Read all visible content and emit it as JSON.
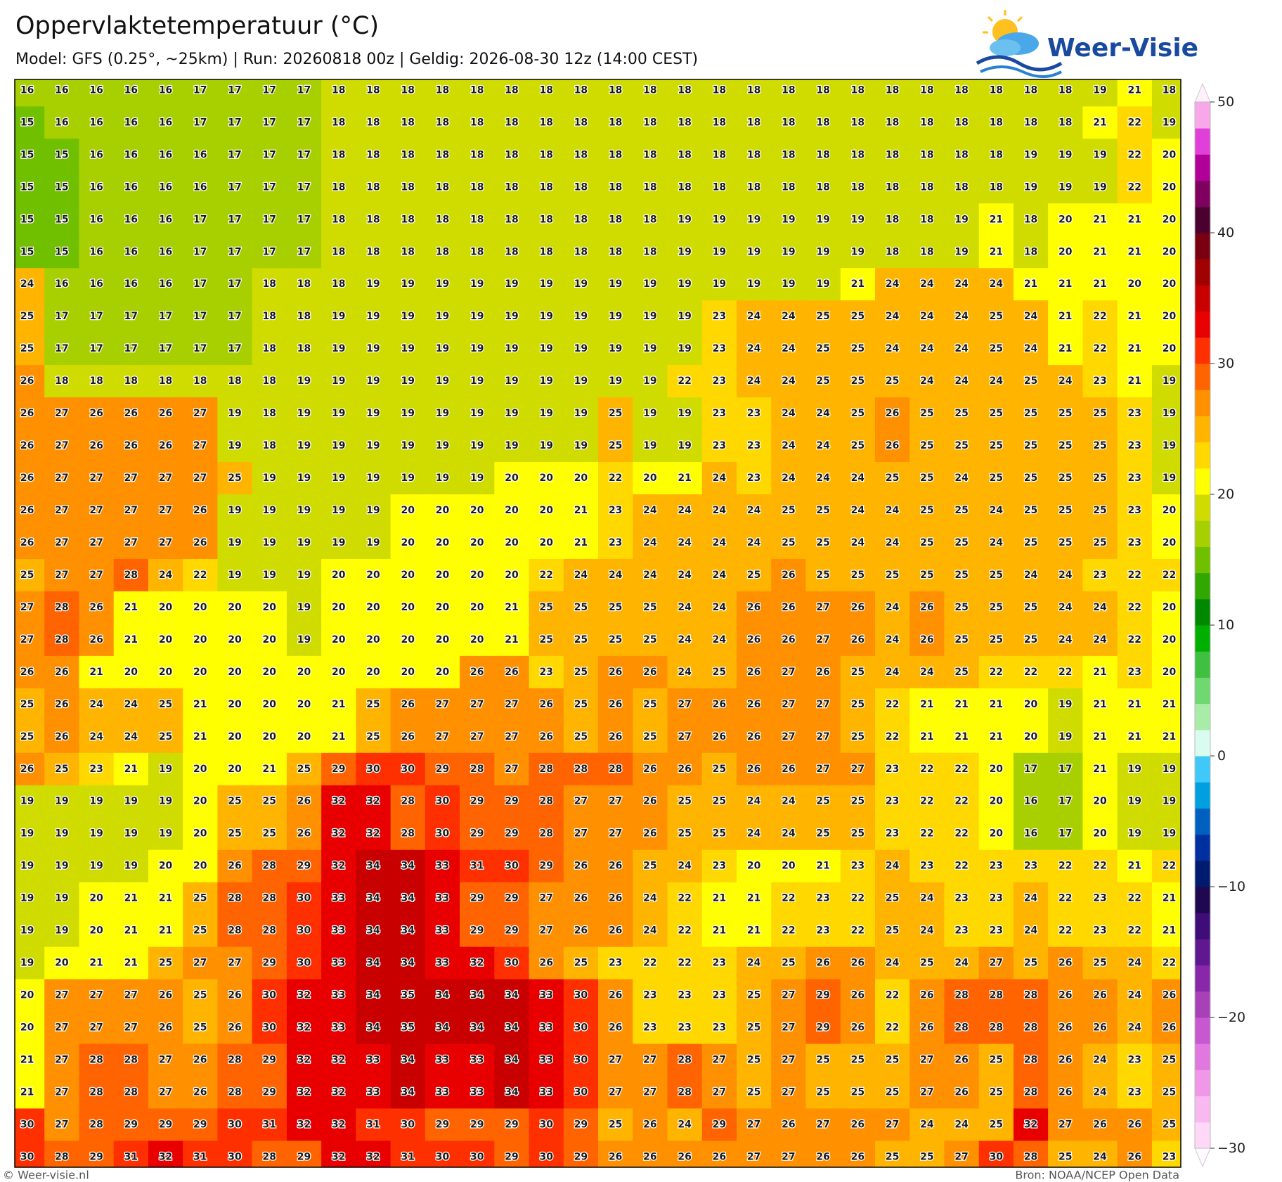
{
  "map": {
    "title": "Oppervlaktetemperatuur (°C)",
    "subtitle": "Model: GFS (0.25°, ~25km)  |  Run: 20260818 00z  |  Geldig: 2026-08-30 12z (14:00 CEST)",
    "grid": [
      [
        16,
        16,
        16,
        16,
        16,
        17,
        17,
        17,
        17,
        18,
        18,
        18,
        18,
        18,
        18,
        18,
        18,
        18,
        18,
        18,
        18,
        18,
        18,
        18,
        18,
        18,
        18,
        18,
        18,
        18,
        18,
        19,
        21,
        18
      ],
      [
        15,
        16,
        16,
        16,
        16,
        17,
        17,
        17,
        17,
        18,
        18,
        18,
        18,
        18,
        18,
        18,
        18,
        18,
        18,
        18,
        18,
        18,
        18,
        18,
        18,
        18,
        18,
        18,
        18,
        18,
        18,
        21,
        22,
        19
      ],
      [
        15,
        15,
        16,
        16,
        16,
        16,
        17,
        17,
        17,
        18,
        18,
        18,
        18,
        18,
        18,
        18,
        18,
        18,
        18,
        18,
        18,
        18,
        18,
        18,
        18,
        18,
        18,
        18,
        18,
        19,
        19,
        19,
        22,
        20
      ],
      [
        15,
        15,
        16,
        16,
        16,
        16,
        17,
        17,
        17,
        18,
        18,
        18,
        18,
        18,
        18,
        18,
        18,
        18,
        18,
        18,
        18,
        18,
        18,
        18,
        18,
        18,
        18,
        18,
        18,
        19,
        19,
        19,
        22,
        20
      ],
      [
        15,
        15,
        16,
        16,
        16,
        17,
        17,
        17,
        17,
        18,
        18,
        18,
        18,
        18,
        18,
        18,
        18,
        18,
        18,
        19,
        19,
        19,
        19,
        19,
        19,
        18,
        18,
        19,
        21,
        18,
        20,
        21,
        21,
        20
      ],
      [
        15,
        15,
        16,
        16,
        16,
        17,
        17,
        17,
        17,
        18,
        18,
        18,
        18,
        18,
        18,
        18,
        18,
        18,
        18,
        19,
        19,
        19,
        19,
        19,
        19,
        18,
        18,
        19,
        21,
        18,
        20,
        21,
        21,
        20
      ],
      [
        24,
        16,
        16,
        16,
        16,
        17,
        17,
        18,
        18,
        18,
        19,
        19,
        19,
        19,
        19,
        19,
        19,
        19,
        19,
        19,
        19,
        19,
        19,
        19,
        21,
        24,
        24,
        24,
        24,
        21,
        21,
        21,
        20,
        20
      ],
      [
        25,
        17,
        17,
        17,
        17,
        17,
        17,
        18,
        18,
        19,
        19,
        19,
        19,
        19,
        19,
        19,
        19,
        19,
        19,
        19,
        23,
        24,
        24,
        25,
        25,
        24,
        24,
        24,
        25,
        24,
        21,
        22,
        21,
        20
      ],
      [
        25,
        17,
        17,
        17,
        17,
        17,
        17,
        18,
        18,
        19,
        19,
        19,
        19,
        19,
        19,
        19,
        19,
        19,
        19,
        19,
        23,
        24,
        24,
        25,
        25,
        24,
        24,
        24,
        25,
        24,
        21,
        22,
        21,
        20
      ],
      [
        26,
        18,
        18,
        18,
        18,
        18,
        18,
        18,
        19,
        19,
        19,
        19,
        19,
        19,
        19,
        19,
        19,
        19,
        19,
        22,
        23,
        24,
        24,
        25,
        25,
        25,
        24,
        24,
        24,
        25,
        24,
        23,
        21,
        19
      ],
      [
        26,
        27,
        26,
        26,
        26,
        27,
        19,
        18,
        19,
        19,
        19,
        19,
        19,
        19,
        19,
        19,
        19,
        25,
        19,
        19,
        23,
        23,
        24,
        24,
        25,
        26,
        25,
        25,
        25,
        25,
        25,
        25,
        23,
        19
      ],
      [
        26,
        27,
        26,
        26,
        26,
        27,
        19,
        18,
        19,
        19,
        19,
        19,
        19,
        19,
        19,
        19,
        19,
        25,
        19,
        19,
        23,
        23,
        24,
        24,
        25,
        26,
        25,
        25,
        25,
        25,
        25,
        25,
        23,
        19
      ],
      [
        26,
        27,
        27,
        27,
        27,
        27,
        25,
        19,
        19,
        19,
        19,
        19,
        19,
        19,
        20,
        20,
        20,
        22,
        20,
        21,
        24,
        23,
        24,
        24,
        24,
        25,
        25,
        24,
        25,
        25,
        25,
        25,
        23,
        19
      ],
      [
        26,
        27,
        27,
        27,
        27,
        26,
        19,
        19,
        19,
        19,
        19,
        20,
        20,
        20,
        20,
        20,
        21,
        23,
        24,
        24,
        24,
        24,
        25,
        25,
        24,
        24,
        25,
        25,
        24,
        25,
        25,
        25,
        23,
        20
      ],
      [
        26,
        27,
        27,
        27,
        27,
        26,
        19,
        19,
        19,
        19,
        19,
        20,
        20,
        20,
        20,
        20,
        21,
        23,
        24,
        24,
        24,
        24,
        25,
        25,
        24,
        24,
        25,
        25,
        24,
        25,
        25,
        25,
        23,
        20
      ],
      [
        25,
        27,
        27,
        28,
        24,
        22,
        19,
        19,
        19,
        20,
        20,
        20,
        20,
        20,
        20,
        22,
        24,
        24,
        24,
        24,
        24,
        25,
        26,
        25,
        25,
        25,
        25,
        25,
        25,
        24,
        24,
        23,
        22,
        22
      ],
      [
        27,
        28,
        26,
        21,
        20,
        20,
        20,
        20,
        19,
        20,
        20,
        20,
        20,
        20,
        21,
        25,
        25,
        25,
        25,
        24,
        24,
        26,
        26,
        27,
        26,
        24,
        26,
        25,
        25,
        25,
        24,
        24,
        22,
        20
      ],
      [
        27,
        28,
        26,
        21,
        20,
        20,
        20,
        20,
        19,
        20,
        20,
        20,
        20,
        20,
        21,
        25,
        25,
        25,
        25,
        24,
        24,
        26,
        26,
        27,
        26,
        24,
        26,
        25,
        25,
        25,
        24,
        24,
        22,
        20
      ],
      [
        26,
        26,
        21,
        20,
        20,
        20,
        20,
        20,
        20,
        20,
        20,
        20,
        20,
        26,
        26,
        23,
        25,
        26,
        26,
        24,
        25,
        26,
        27,
        26,
        25,
        24,
        24,
        25,
        22,
        22,
        22,
        21,
        23,
        20
      ],
      [
        25,
        26,
        24,
        24,
        25,
        21,
        20,
        20,
        20,
        21,
        25,
        26,
        27,
        27,
        27,
        26,
        25,
        26,
        25,
        27,
        26,
        26,
        27,
        27,
        25,
        22,
        21,
        21,
        21,
        20,
        19,
        21,
        21,
        21
      ],
      [
        25,
        26,
        24,
        24,
        25,
        21,
        20,
        20,
        20,
        21,
        25,
        26,
        27,
        27,
        27,
        26,
        25,
        26,
        25,
        27,
        26,
        26,
        27,
        27,
        25,
        22,
        21,
        21,
        21,
        20,
        19,
        21,
        21,
        21
      ],
      [
        26,
        25,
        23,
        21,
        19,
        20,
        20,
        21,
        25,
        29,
        30,
        30,
        29,
        28,
        27,
        28,
        28,
        28,
        26,
        26,
        25,
        26,
        26,
        27,
        27,
        23,
        22,
        22,
        20,
        17,
        17,
        21,
        19,
        19
      ],
      [
        19,
        19,
        19,
        19,
        19,
        20,
        25,
        25,
        26,
        32,
        32,
        28,
        30,
        29,
        29,
        28,
        27,
        27,
        26,
        25,
        25,
        24,
        24,
        25,
        25,
        23,
        22,
        22,
        20,
        16,
        17,
        20,
        19,
        19
      ],
      [
        19,
        19,
        19,
        19,
        19,
        20,
        25,
        25,
        26,
        32,
        32,
        28,
        30,
        29,
        29,
        28,
        27,
        27,
        26,
        25,
        25,
        24,
        24,
        25,
        25,
        23,
        22,
        22,
        20,
        16,
        17,
        20,
        19,
        19
      ],
      [
        19,
        19,
        19,
        19,
        20,
        20,
        26,
        28,
        29,
        32,
        34,
        34,
        33,
        31,
        30,
        29,
        26,
        26,
        25,
        24,
        23,
        20,
        20,
        21,
        23,
        24,
        23,
        22,
        23,
        23,
        22,
        22,
        21,
        22
      ],
      [
        19,
        19,
        20,
        21,
        21,
        25,
        28,
        28,
        30,
        33,
        34,
        34,
        33,
        29,
        29,
        27,
        26,
        26,
        24,
        22,
        21,
        21,
        22,
        23,
        22,
        25,
        24,
        23,
        23,
        24,
        22,
        23,
        22,
        21
      ],
      [
        19,
        19,
        20,
        21,
        21,
        25,
        28,
        28,
        30,
        33,
        34,
        34,
        33,
        29,
        29,
        27,
        26,
        26,
        24,
        22,
        21,
        21,
        22,
        23,
        22,
        25,
        24,
        23,
        23,
        24,
        22,
        23,
        22,
        21
      ],
      [
        19,
        20,
        21,
        21,
        25,
        27,
        27,
        29,
        30,
        33,
        34,
        34,
        33,
        32,
        30,
        26,
        25,
        23,
        22,
        22,
        23,
        24,
        25,
        26,
        26,
        24,
        25,
        24,
        27,
        25,
        26,
        25,
        24,
        22
      ],
      [
        20,
        27,
        27,
        27,
        26,
        25,
        26,
        30,
        32,
        33,
        34,
        35,
        34,
        34,
        34,
        33,
        30,
        26,
        23,
        23,
        23,
        25,
        27,
        29,
        26,
        22,
        26,
        28,
        28,
        28,
        26,
        26,
        24,
        26
      ],
      [
        20,
        27,
        27,
        27,
        26,
        25,
        26,
        30,
        32,
        33,
        34,
        35,
        34,
        34,
        34,
        33,
        30,
        26,
        23,
        23,
        23,
        25,
        27,
        29,
        26,
        22,
        26,
        28,
        28,
        28,
        26,
        26,
        24,
        26
      ],
      [
        21,
        27,
        28,
        28,
        27,
        26,
        28,
        29,
        32,
        32,
        33,
        34,
        33,
        33,
        34,
        33,
        30,
        27,
        27,
        28,
        27,
        25,
        27,
        25,
        25,
        25,
        27,
        26,
        25,
        28,
        26,
        24,
        23,
        25
      ],
      [
        21,
        27,
        28,
        28,
        27,
        26,
        28,
        29,
        32,
        32,
        33,
        34,
        33,
        33,
        34,
        33,
        30,
        27,
        27,
        28,
        27,
        25,
        27,
        25,
        25,
        25,
        27,
        26,
        25,
        28,
        26,
        24,
        23,
        25
      ],
      [
        30,
        27,
        28,
        29,
        29,
        29,
        30,
        31,
        32,
        32,
        31,
        30,
        29,
        29,
        29,
        30,
        29,
        25,
        26,
        24,
        29,
        27,
        26,
        27,
        26,
        27,
        24,
        24,
        25,
        32,
        27,
        26,
        26,
        25
      ],
      [
        30,
        28,
        29,
        31,
        32,
        31,
        30,
        28,
        29,
        32,
        32,
        31,
        30,
        30,
        29,
        30,
        29,
        26,
        26,
        26,
        26,
        27,
        27,
        26,
        26,
        25,
        25,
        27,
        30,
        28,
        25,
        24,
        26,
        23
      ]
    ]
  },
  "colorbar": {
    "lim": [
      -30,
      50
    ],
    "ticks": [
      50,
      40,
      30,
      20,
      10,
      0,
      {
        "value": -10,
        "label": "−10"
      },
      {
        "value": -20,
        "label": "−20"
      },
      {
        "value": -30,
        "label": "−30"
      }
    ],
    "colors": [
      "#ffd8f8",
      "#f8b8f0",
      "#f098e8",
      "#e078e0",
      "#c858d0",
      "#a840b8",
      "#8828a8",
      "#601890",
      "#400c78",
      "#200850",
      "#001a70",
      "#0030a0",
      "#0060c0",
      "#00a0e0",
      "#40c8f8",
      "#d8fcf0",
      "#a8eca8",
      "#70d870",
      "#40c040",
      "#00b000",
      "#008800",
      "#30a800",
      "#70c000",
      "#a8d000",
      "#d0dc00",
      "#ffff00",
      "#ffd800",
      "#ffb400",
      "#ff9000",
      "#ff6400",
      "#ff3000",
      "#e80000",
      "#c80000",
      "#a00000",
      "#780010",
      "#4c0030",
      "#800060",
      "#b00098",
      "#e040d8",
      "#f8a8e8"
    ]
  },
  "logo": "Weer-Visie",
  "footer": {
    "left": "© Weer-visie.nl",
    "right": "Bron: NOAA/NCEP Open Data"
  }
}
